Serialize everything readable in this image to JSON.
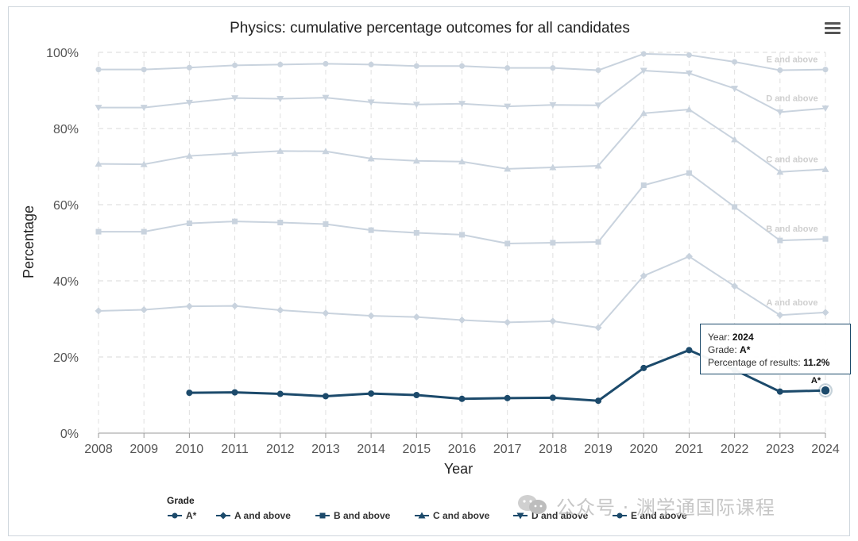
{
  "chart_data": {
    "type": "line",
    "title": "Physics: cumulative percentage outcomes for all candidates",
    "xlabel": "Year",
    "ylabel": "Percentage",
    "ylim": [
      0,
      100
    ],
    "yticks": [
      "0%",
      "20%",
      "40%",
      "60%",
      "80%",
      "100%"
    ],
    "x": [
      "2008",
      "2009",
      "2010",
      "2011",
      "2012",
      "2013",
      "2014",
      "2015",
      "2016",
      "2017",
      "2018",
      "2019",
      "2020",
      "2021",
      "2022",
      "2023",
      "2024"
    ],
    "legend_title": "Grade",
    "series": [
      {
        "name": "E and above",
        "end_label": "E and above",
        "color": "#c9d3de",
        "marker": "circle",
        "values": [
          95.5,
          95.5,
          96.0,
          96.6,
          96.8,
          97.0,
          96.8,
          96.4,
          96.4,
          95.9,
          95.9,
          95.3,
          99.6,
          99.3,
          97.5,
          95.3,
          95.5
        ]
      },
      {
        "name": "D and above",
        "end_label": "D and above",
        "color": "#c9d3de",
        "marker": "tri-down",
        "values": [
          85.5,
          85.5,
          86.8,
          88.0,
          87.8,
          88.1,
          86.9,
          86.3,
          86.5,
          85.8,
          86.2,
          86.1,
          95.2,
          94.5,
          90.5,
          84.3,
          85.3
        ]
      },
      {
        "name": "C and above",
        "end_label": "C and above",
        "color": "#c9d3de",
        "marker": "tri-up",
        "values": [
          70.7,
          70.6,
          72.8,
          73.5,
          74.1,
          74.0,
          72.1,
          71.5,
          71.3,
          69.4,
          69.8,
          70.2,
          84.0,
          85.0,
          77.1,
          68.6,
          69.3
        ]
      },
      {
        "name": "B and above",
        "end_label": "B and above",
        "color": "#c9d3de",
        "marker": "square",
        "values": [
          52.9,
          52.9,
          55.1,
          55.6,
          55.3,
          54.9,
          53.3,
          52.6,
          52.1,
          49.8,
          50.0,
          50.2,
          65.1,
          68.3,
          59.4,
          50.6,
          51.0
        ]
      },
      {
        "name": "A and above",
        "end_label": "A and above",
        "color": "#c9d3de",
        "marker": "diamond",
        "values": [
          32.1,
          32.4,
          33.3,
          33.4,
          32.3,
          31.5,
          30.8,
          30.5,
          29.7,
          29.1,
          29.4,
          27.7,
          41.3,
          46.4,
          38.6,
          31.0,
          31.7
        ]
      },
      {
        "name": "A*",
        "end_label": "A*",
        "color": "#1c4a6b",
        "marker": "circle",
        "values": [
          null,
          null,
          10.6,
          10.7,
          10.3,
          9.7,
          10.4,
          10.0,
          9.0,
          9.2,
          9.3,
          8.5,
          17.1,
          21.8,
          16.6,
          10.9,
          11.2
        ]
      }
    ],
    "tooltip": {
      "year_label": "Year: ",
      "year": "2024",
      "grade_label": "Grade: ",
      "grade": "A*",
      "pct_label": "Percentage of results: ",
      "pct": "11.2%"
    }
  },
  "watermark": "公众号 · 渊学通国际课程"
}
